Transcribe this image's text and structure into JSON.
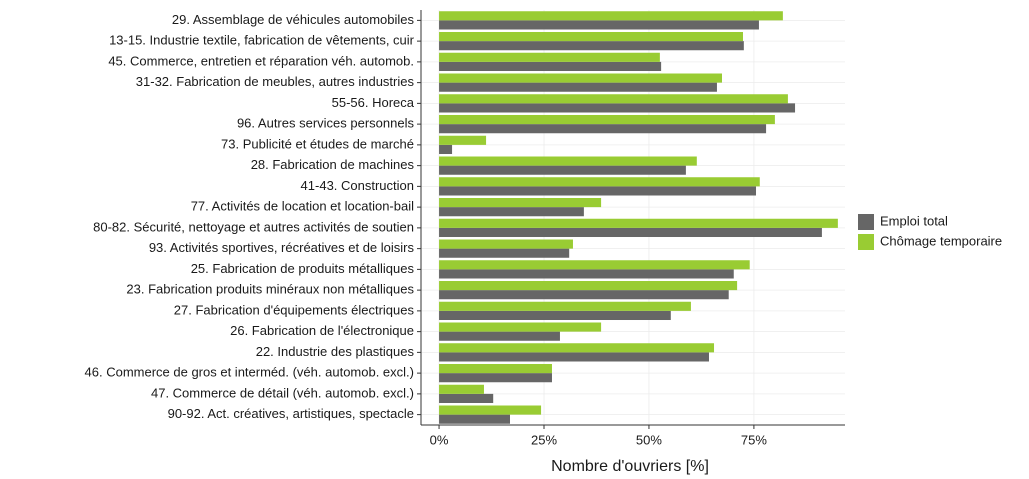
{
  "chart_data": {
    "type": "hbar",
    "x_label": "Nombre d'ouvriers [%]",
    "categories": [
      "29. Assemblage de véhicules automobiles",
      "13-15. Industrie textile, fabrication de vêtements, cuir",
      "45. Commerce, entretien et réparation véh. automob.",
      "31-32. Fabrication de meubles, autres industries",
      "55-56. Horeca",
      "96. Autres services personnels",
      "73. Publicité et études de marché",
      "28. Fabrication de machines",
      "41-43. Construction",
      "77. Activités de location et location-bail",
      "80-82. Sécurité, nettoyage et autres activités de soutien",
      "93. Activités sportives, récréatives et de loisirs",
      "25. Fabrication de produits métalliques",
      "23. Fabrication produits minéraux non métalliques",
      "27. Fabrication d'équipements électriques",
      "26. Fabrication de l'électronique",
      "22. Industrie des plastiques",
      "46. Commerce de gros et interméd. (véh. automob. excl.)",
      "47. Commerce de détail (véh. automob. excl.)",
      "90-92. Act. créatives, artistiques, spectacle"
    ],
    "series": [
      {
        "name": "Emploi total",
        "color": "#666666",
        "values": [
          76.2,
          72.6,
          52.9,
          66.2,
          84.8,
          77.9,
          3.1,
          58.8,
          75.5,
          34.5,
          91.2,
          31.0,
          70.2,
          69.0,
          55.2,
          28.8,
          64.3,
          26.9,
          12.9,
          16.9
        ]
      },
      {
        "name": "Chômage temporaire",
        "color": "#99cc33",
        "values": [
          81.9,
          72.4,
          52.6,
          67.4,
          83.1,
          80.0,
          11.2,
          61.4,
          76.4,
          38.6,
          95.0,
          31.9,
          74.0,
          71.0,
          60.0,
          38.6,
          65.5,
          26.9,
          10.7,
          24.3
        ]
      }
    ],
    "xlim": [
      -4.3,
      96.7
    ],
    "xticks": [
      {
        "value": 0,
        "label": "0%"
      },
      {
        "value": 25,
        "label": "25%"
      },
      {
        "value": 50,
        "label": "50%"
      },
      {
        "value": 75,
        "label": "75%"
      }
    ],
    "grid": true,
    "legend": "right"
  }
}
